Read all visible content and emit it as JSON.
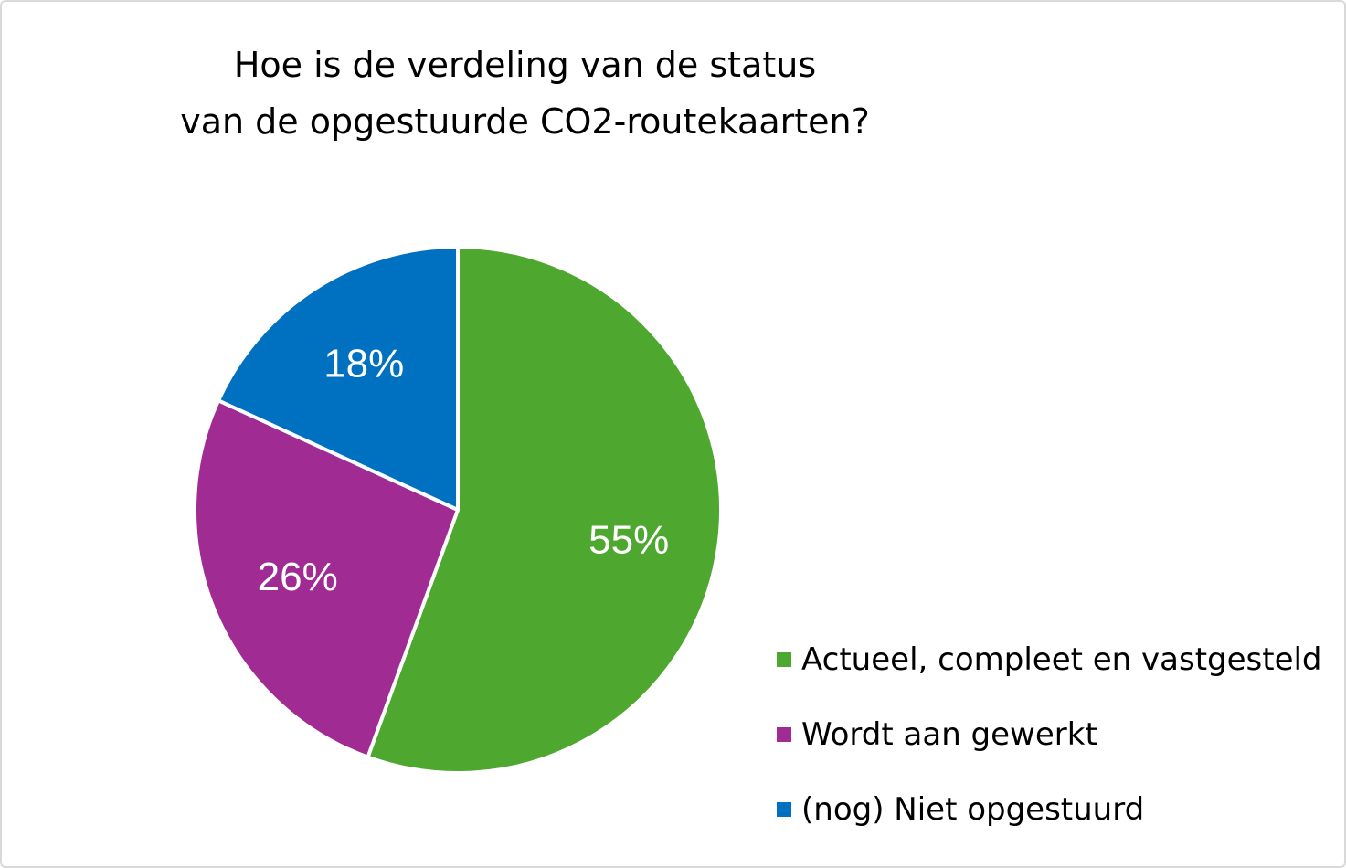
{
  "chart_data": {
    "type": "pie",
    "title_lines": [
      "Hoe is de verdeling van de status",
      "van de opgestuurde CO2-routekaarten?"
    ],
    "slices": [
      {
        "name": "Actueel, compleet en vastgesteld",
        "value": 55,
        "label": "55%",
        "color": "#4ea72e"
      },
      {
        "name": "Wordt aan gewerkt",
        "value": 26,
        "label": "26%",
        "color": "#a02b93"
      },
      {
        "name": "(nog) Niet opgestuurd",
        "value": 18,
        "label": "18%",
        "color": "#0070c0"
      }
    ],
    "start_angle_deg": 0,
    "direction": "clockwise",
    "legend_position": "right-bottom"
  }
}
